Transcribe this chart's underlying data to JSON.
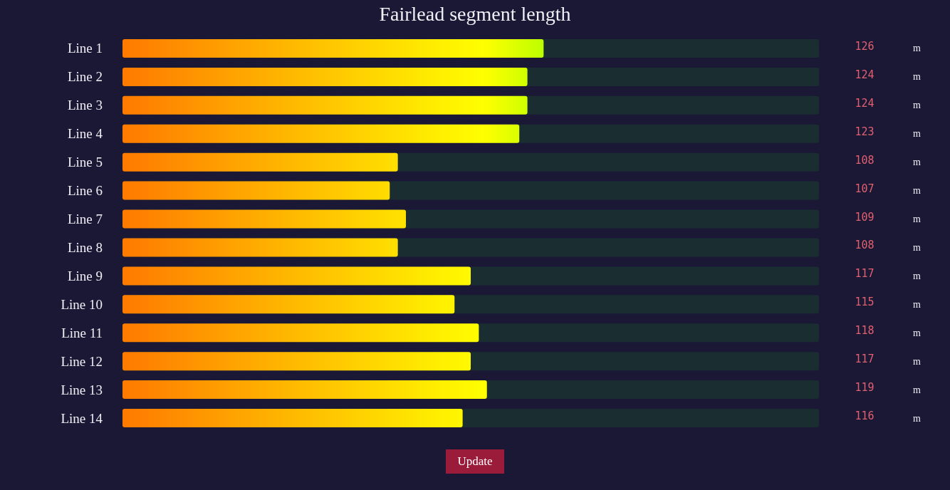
{
  "chart_data": {
    "type": "bar",
    "orientation": "horizontal",
    "title": "Fairlead segment length",
    "categories": [
      "Line 1",
      "Line 2",
      "Line 3",
      "Line 4",
      "Line 5",
      "Line 6",
      "Line 7",
      "Line 8",
      "Line 9",
      "Line 10",
      "Line 11",
      "Line 12",
      "Line 13",
      "Line 14"
    ],
    "values": [
      126,
      124,
      124,
      123,
      108,
      107,
      109,
      108,
      117,
      115,
      118,
      117,
      119,
      116
    ],
    "xlim": [
      74,
      160
    ],
    "data_labels": true,
    "annotations": [
      "m",
      "Update"
    ]
  }
}
